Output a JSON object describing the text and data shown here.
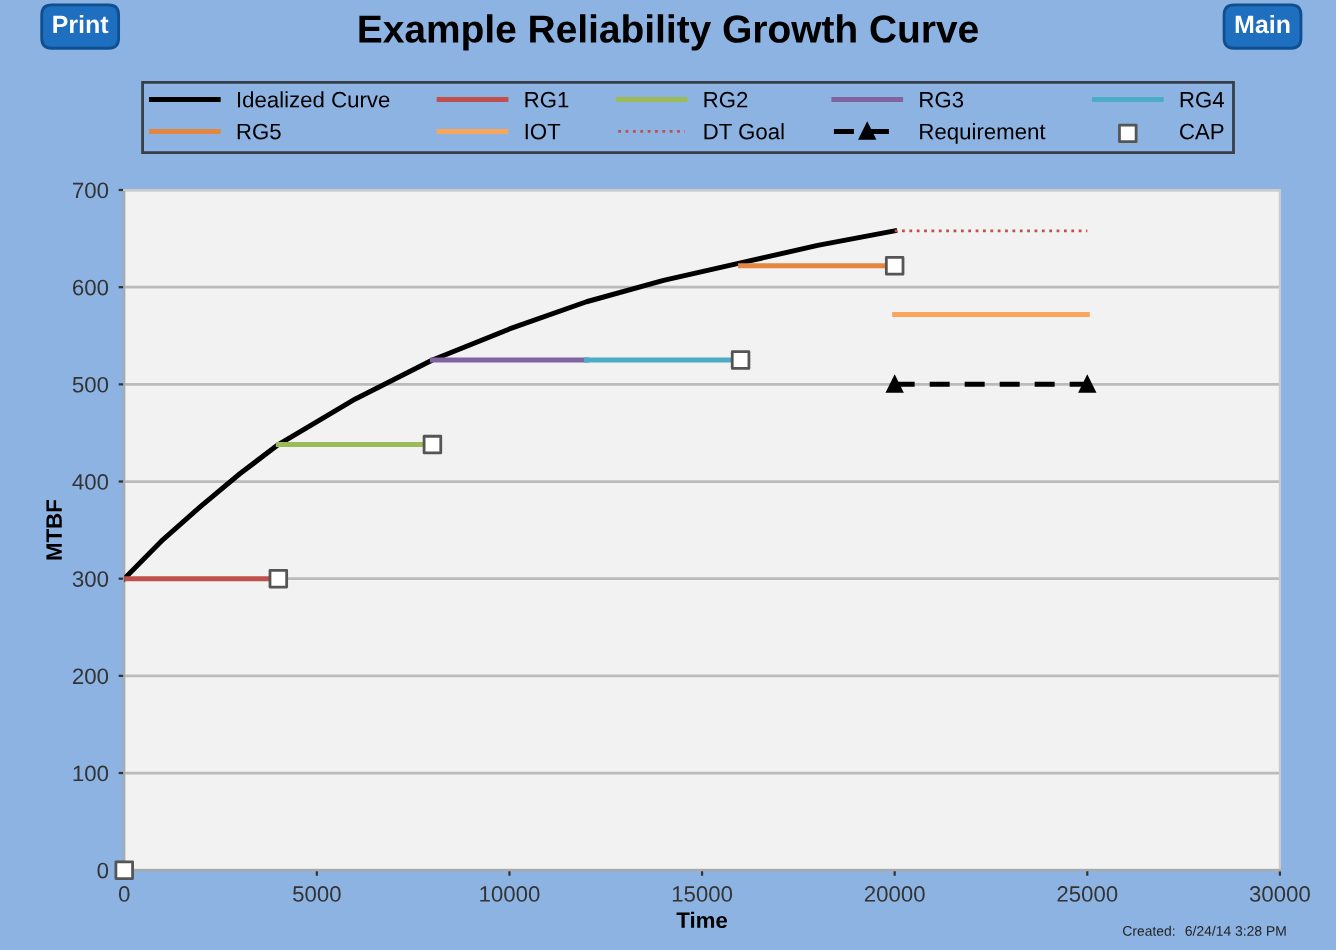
{
  "chart_data": {
    "type": "line",
    "title": "Example Reliability Growth Curve",
    "xlabel": "Time",
    "ylabel": "MTBF",
    "xlim": [
      0,
      30000
    ],
    "xticks": [
      0,
      5000,
      10000,
      15000,
      20000,
      25000,
      30000
    ],
    "ylim": [
      0,
      700
    ],
    "yticks": [
      0,
      100,
      200,
      300,
      400,
      500,
      600,
      700
    ],
    "grid": "y",
    "legend": "top",
    "annotations": [
      "Print",
      "Main",
      "Created:",
      "6/24/14 3:28 PM"
    ],
    "series": [
      {
        "name": "Idealized Curve",
        "color": "#000000",
        "x": [
          0,
          1000,
          2000,
          3000,
          4000,
          6000,
          8000,
          10000,
          12000,
          14000,
          16000,
          18000,
          20000
        ],
        "values": [
          300,
          340,
          375,
          408,
          438,
          485,
          525,
          557,
          585,
          607,
          625,
          643,
          658
        ]
      },
      {
        "name": "RG1",
        "color": "#c0504d",
        "x": [
          0,
          4000
        ],
        "values": [
          300,
          300
        ]
      },
      {
        "name": "RG2",
        "color": "#9bbb59",
        "x": [
          4000,
          8000
        ],
        "values": [
          438,
          438
        ]
      },
      {
        "name": "RG3",
        "color": "#8064a2",
        "x": [
          8000,
          12000
        ],
        "values": [
          525,
          525
        ]
      },
      {
        "name": "RG4",
        "color": "#4bacc6",
        "x": [
          12000,
          16000
        ],
        "values": [
          525,
          525
        ]
      },
      {
        "name": "RG5",
        "color": "#e3863f",
        "x": [
          16000,
          20000
        ],
        "values": [
          622,
          622
        ]
      },
      {
        "name": "IOT",
        "color": "#f9a65a",
        "x": [
          20000,
          25000
        ],
        "values": [
          572,
          572
        ]
      },
      {
        "name": "DT Goal",
        "color": "#c0504d",
        "line_style": "dotted",
        "x": [
          20000,
          25000
        ],
        "values": [
          658,
          658
        ]
      },
      {
        "name": "Requirement",
        "color": "#000000",
        "line_style": "dashed",
        "marker": "triangle",
        "x": [
          20000,
          25000
        ],
        "values": [
          500,
          500
        ]
      },
      {
        "name": "CAP",
        "type": "scatter",
        "color": "#ffffff",
        "marker": "square",
        "x": [
          0,
          4000,
          8000,
          16000,
          20000
        ],
        "values": [
          0,
          300,
          438,
          525,
          622
        ]
      }
    ]
  }
}
